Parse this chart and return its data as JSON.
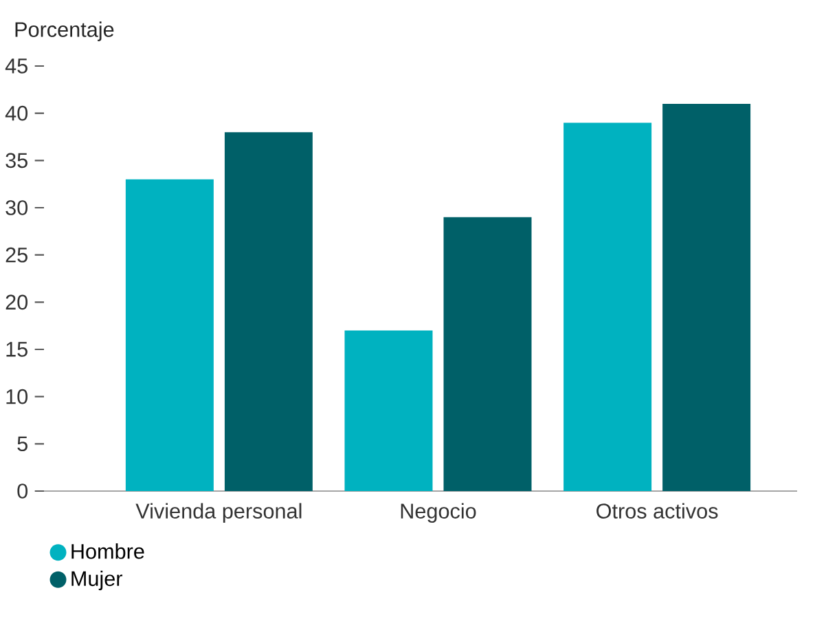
{
  "chart_data": {
    "type": "bar",
    "ylabel": "Porcentaje",
    "categories": [
      "Vivienda personal",
      "Negocio",
      "Otros activos"
    ],
    "series": [
      {
        "name": "Hombre",
        "color": "#00b2c0",
        "values": [
          33,
          17,
          39
        ]
      },
      {
        "name": "Mujer",
        "color": "#006068",
        "values": [
          38,
          29,
          41
        ]
      }
    ],
    "ylim": [
      0,
      45
    ],
    "yticks": [
      0,
      5,
      10,
      15,
      20,
      25,
      30,
      35,
      40,
      45
    ],
    "legend": "bottom left"
  }
}
